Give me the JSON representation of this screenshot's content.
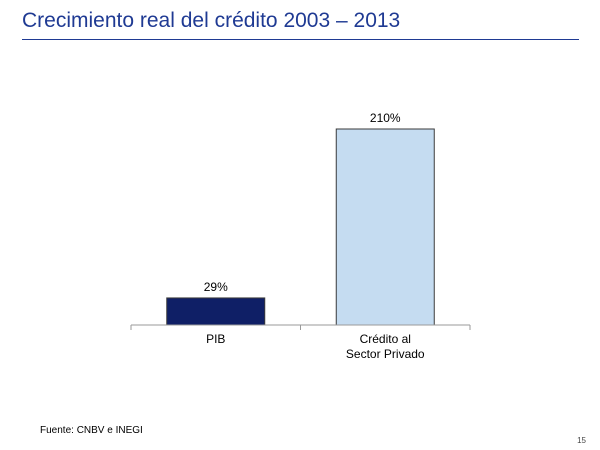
{
  "slide": {
    "title": "Crecimiento real del crédito 2003 – 2013",
    "source": "Fuente: CNBV e INEGI",
    "page_number": "15"
  },
  "colors": {
    "title": "#1f3a93",
    "series": [
      "#0f1f66",
      "#c5dcf1"
    ]
  },
  "chart_data": {
    "type": "bar",
    "title": "",
    "xlabel": "",
    "ylabel": "",
    "categories": [
      [
        "PIB"
      ],
      [
        "Crédito al",
        "Sector Privado"
      ]
    ],
    "values": [
      29,
      210
    ],
    "value_labels": [
      "29%",
      "210%"
    ],
    "unit": "%",
    "ylim": [
      0,
      210
    ],
    "grid": false,
    "legend": "none"
  }
}
